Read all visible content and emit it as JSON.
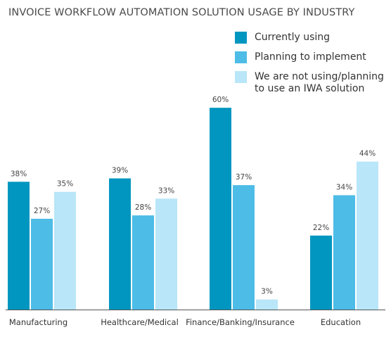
{
  "chart_data": {
    "type": "bar",
    "title": "INVOICE WORKFLOW AUTOMATION SOLUTION USAGE BY INDUSTRY",
    "categories": [
      "Manufacturing",
      "Healthcare/Medical",
      "Finance/Banking/Insurance",
      "Education"
    ],
    "series": [
      {
        "name": "Currently using",
        "color": "#0096c0",
        "values": [
          38,
          39,
          60,
          22
        ]
      },
      {
        "name": "Planning to implement",
        "color": "#4dbce6",
        "values": [
          27,
          28,
          37,
          34
        ]
      },
      {
        "name": "We are not using/planning\nto use an IWA solution",
        "color": "#b9e6f8",
        "values": [
          35,
          33,
          3,
          44
        ]
      }
    ],
    "value_suffix": "%",
    "ylim": [
      0,
      60
    ],
    "grid": false,
    "legend_position": "top-right"
  }
}
